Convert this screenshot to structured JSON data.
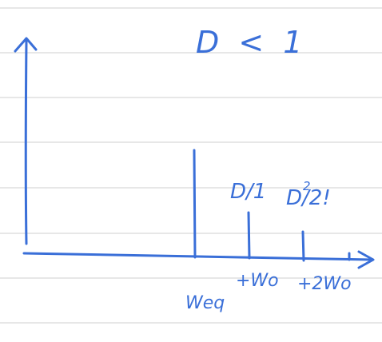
{
  "title": "D < 1",
  "spikes": [
    {
      "label": "Weq",
      "coefficient": ""
    },
    {
      "label": "+Wo",
      "coefficient": "D/1"
    },
    {
      "label": "+2Wo",
      "coefficient": "D²/2!"
    }
  ],
  "coefficient_parts": {
    "first_base": "D/1",
    "second_base": "D/2!",
    "second_exponent": "2"
  },
  "colors": {
    "ink": "#3a6fd8",
    "rule_lines": "#cfcfcf",
    "paper": "#ffffff"
  }
}
